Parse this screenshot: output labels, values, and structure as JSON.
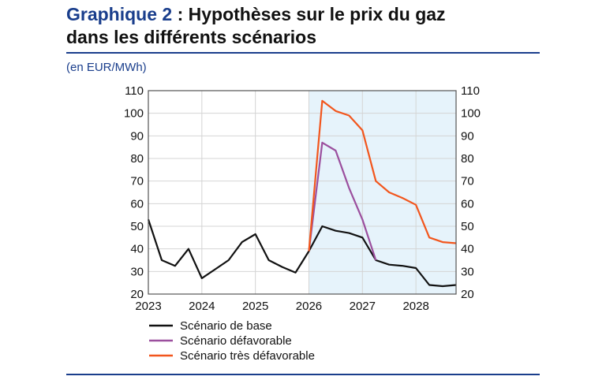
{
  "title": {
    "number": "Graphique 2",
    "rest_line1": " : Hypothèses sur le prix du gaz",
    "line2": "dans les différents scénarios"
  },
  "unit": "(en EUR/MWh)",
  "chart_data": {
    "type": "line",
    "title": "Graphique 2 : Hypothèses sur le prix du gaz dans les différents scénarios",
    "ylabel": "(en EUR/MWh)",
    "ylim": [
      20,
      110
    ],
    "yticks": [
      20,
      30,
      40,
      50,
      60,
      70,
      80,
      90,
      100,
      110
    ],
    "xlim": [
      2023,
      2028.75
    ],
    "xticks": [
      "2023",
      "2024",
      "2025",
      "2026",
      "2027",
      "2028"
    ],
    "grid": true,
    "legend_placement": "bottom",
    "shaded_region": {
      "from": 2026,
      "to": 2028.75,
      "color": "#e6f3fb"
    },
    "series": [
      {
        "name": "Scénario de base",
        "color": "#111111",
        "x_start": 2023,
        "step": 0.25,
        "values": [
          53,
          35,
          32.5,
          40,
          27,
          31,
          35,
          43,
          46.5,
          35,
          32,
          29.5,
          39,
          50,
          48,
          47,
          45,
          35,
          33,
          32.5,
          31.5,
          24,
          23.5,
          24
        ]
      },
      {
        "name": "Scénario défavorable",
        "color": "#9b4f9e",
        "x_start": 2026,
        "step": 0.25,
        "values": [
          39,
          87,
          83.5,
          67,
          53,
          35
        ]
      },
      {
        "name": "Scénario très défavorable",
        "color": "#f2561d",
        "x_start": 2026,
        "step": 0.25,
        "values": [
          39,
          105.5,
          101,
          99,
          92.5,
          70,
          65,
          62.5,
          59.5,
          45,
          43,
          42.5
        ]
      }
    ]
  }
}
